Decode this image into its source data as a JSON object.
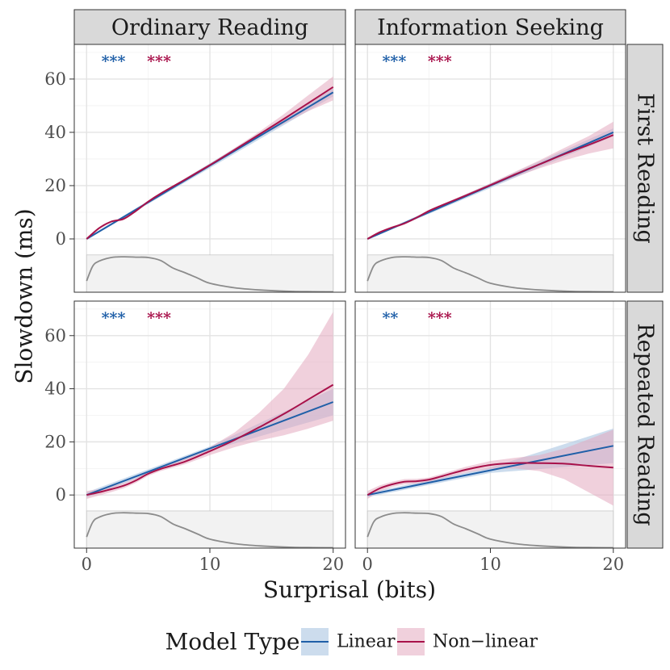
{
  "chart_data": {
    "type": "line",
    "ylabel": "Slowdown (ms)",
    "xlabel": "Surprisal (bits)",
    "xlim": [
      -1,
      21
    ],
    "ylim": [
      -20,
      73
    ],
    "x_ticks": [
      0,
      10,
      20
    ],
    "y_ticks": [
      0,
      20,
      40,
      60
    ],
    "grid": true,
    "column_labels": [
      "Ordinary Reading",
      "Information Seeking"
    ],
    "row_labels": [
      "First Reading",
      "Repeated Reading"
    ],
    "legend": {
      "title": "Model Type",
      "position": "bottom",
      "entries": [
        {
          "label": "Linear",
          "color": "#1f5fa8",
          "fill": "#b7cde6"
        },
        {
          "label": "Non−linear",
          "color": "#a8114a",
          "fill": "#e4a9bf"
        }
      ]
    },
    "density_strip": {
      "y_range": [
        -20,
        -6
      ],
      "x": [
        0,
        0.5,
        1,
        2,
        3,
        4,
        5,
        6,
        7,
        8,
        9,
        10,
        12,
        14,
        16,
        18,
        20
      ],
      "density": [
        0.3,
        0.7,
        0.83,
        0.93,
        0.95,
        0.94,
        0.93,
        0.85,
        0.65,
        0.52,
        0.38,
        0.24,
        0.12,
        0.06,
        0.03,
        0.015,
        0.01
      ]
    },
    "panels": [
      {
        "column": "Ordinary Reading",
        "row": "First Reading",
        "significance": [
          {
            "label": "***",
            "color": "#1f5fa8"
          },
          {
            "label": "***",
            "color": "#a8114a"
          }
        ],
        "series": [
          {
            "name": "Linear",
            "x": [
              0,
              20
            ],
            "y": [
              0,
              55
            ],
            "lower": [
              -0.3,
              53.5
            ],
            "upper": [
              0.3,
              56.5
            ]
          },
          {
            "name": "Non−linear",
            "x": [
              0,
              1,
              2,
              3,
              4,
              5,
              6,
              8,
              10,
              12,
              14,
              16,
              18,
              20
            ],
            "y": [
              0,
              4,
              6.5,
              7.5,
              10.5,
              14,
              17,
              22.3,
              27.7,
              33.4,
              39.2,
              45,
              51,
              57
            ],
            "lower": [
              -0.5,
              3.6,
              6.1,
              7.1,
              10.1,
              13.6,
              16.6,
              21.9,
              27.2,
              32.7,
              38.2,
              43.2,
              48,
              52
            ],
            "upper": [
              0.5,
              4.4,
              6.9,
              7.9,
              10.9,
              14.4,
              17.4,
              22.7,
              28.2,
              34.1,
              40.2,
              46.8,
              54,
              61
            ]
          }
        ]
      },
      {
        "column": "Information Seeking",
        "row": "First Reading",
        "significance": [
          {
            "label": "***",
            "color": "#1f5fa8"
          },
          {
            "label": "***",
            "color": "#a8114a"
          }
        ],
        "series": [
          {
            "name": "Linear",
            "x": [
              0,
              20
            ],
            "y": [
              0,
              40
            ],
            "lower": [
              -0.3,
              38.5
            ],
            "upper": [
              0.3,
              41.5
            ]
          },
          {
            "name": "Non−linear",
            "x": [
              0,
              1,
              2,
              3,
              4,
              5,
              6,
              8,
              10,
              12,
              14,
              16,
              18,
              20
            ],
            "y": [
              0,
              2.5,
              4.3,
              5.8,
              8,
              10.5,
              12.5,
              16.3,
              20.2,
              24.2,
              28,
              31.8,
              35.3,
              39
            ],
            "lower": [
              -0.5,
              2.1,
              3.9,
              5.4,
              7.6,
              10.1,
              12.1,
              15.8,
              19.6,
              23.2,
              26.5,
              29.5,
              32,
              34
            ],
            "upper": [
              0.5,
              2.9,
              4.7,
              6.2,
              8.4,
              10.9,
              12.9,
              16.8,
              20.8,
              25.2,
              29.5,
              34.1,
              38.6,
              44
            ]
          }
        ]
      },
      {
        "column": "Ordinary Reading",
        "row": "Repeated Reading",
        "significance": [
          {
            "label": "***",
            "color": "#1f5fa8"
          },
          {
            "label": "***",
            "color": "#a8114a"
          }
        ],
        "series": [
          {
            "name": "Linear",
            "x": [
              0,
              10,
              20
            ],
            "y": [
              0,
              17.5,
              35
            ],
            "lower": [
              -1,
              16.7,
              30
            ],
            "upper": [
              1,
              18.3,
              40
            ]
          },
          {
            "name": "Non−linear",
            "x": [
              0,
              1,
              2,
              3,
              4,
              5,
              6,
              8,
              10,
              12,
              14,
              16,
              18,
              20
            ],
            "y": [
              0,
              1,
              2.2,
              3.5,
              5.5,
              8,
              9.8,
              12.6,
              16.5,
              20.7,
              25.5,
              30.5,
              36,
              41.5
            ],
            "lower": [
              -1.5,
              -0.2,
              1.1,
              2.5,
              4.6,
              7.2,
              9,
              11.6,
              15,
              18,
              20.5,
              22.5,
              25,
              28
            ],
            "upper": [
              1.5,
              2.2,
              3.3,
              4.5,
              6.4,
              8.8,
              10.6,
              13.6,
              18,
              23.5,
              31,
              40,
              53,
              69
            ]
          }
        ]
      },
      {
        "column": "Information Seeking",
        "row": "Repeated Reading",
        "significance": [
          {
            "label": "**",
            "color": "#1f5fa8"
          },
          {
            "label": "***",
            "color": "#a8114a"
          }
        ],
        "series": [
          {
            "name": "Linear",
            "x": [
              0,
              10,
              20
            ],
            "y": [
              0,
              9.3,
              18.5
            ],
            "lower": [
              -0.8,
              8.3,
              12
            ],
            "upper": [
              0.8,
              10.3,
              25
            ]
          },
          {
            "name": "Non−linear",
            "x": [
              0,
              1,
              2,
              3,
              4,
              5,
              6,
              8,
              10,
              12,
              14,
              16,
              18,
              20
            ],
            "y": [
              0,
              2.5,
              4,
              5,
              5.2,
              5.8,
              7,
              9.5,
              11.3,
              12,
              12,
              11.8,
              11,
              10.3
            ],
            "lower": [
              -1.5,
              1.4,
              3,
              4,
              4.3,
              5,
              6.1,
              8.4,
              9.8,
              10,
              9,
              6,
              1,
              -4
            ],
            "upper": [
              1.5,
              3.6,
              5,
              6,
              6.1,
              6.6,
              7.9,
              10.6,
              12.8,
              14,
              15,
              17.5,
              21,
              24.6
            ]
          }
        ]
      }
    ]
  }
}
